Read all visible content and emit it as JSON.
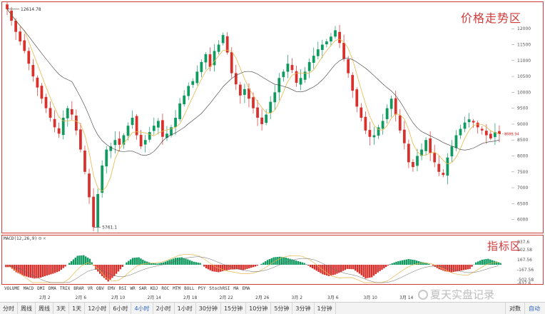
{
  "price_panel": {
    "label": "价格走势区",
    "high_marker": "12614.78",
    "low_marker": "5761.1",
    "last_price": "8689.94",
    "y_labels": [
      "12000",
      "11500",
      "11000",
      "10500",
      "10000",
      "9500",
      "9000",
      "8500",
      "8000",
      "7500",
      "7000",
      "6500",
      "6000"
    ],
    "colors": {
      "up": "#0f9a60",
      "down": "#d9302c",
      "ma_fast": "#e8b84a",
      "ma_slow": "#3a3a3a"
    }
  },
  "indicator_panel": {
    "label": "指标区",
    "title": "MACD(12,26,9)",
    "y_labels": [
      "837.6",
      "502.58",
      "167.56",
      "-167.56",
      "-502.58",
      "-837.6"
    ],
    "colors": {
      "pos": "#0f9a60",
      "neg": "#d9302c",
      "dif": "#e8b84a",
      "dea": "#666666"
    }
  },
  "indicator_names": [
    "VOLUME",
    "MACD",
    "DMI",
    "DMA",
    "TRIX",
    "BRAR",
    "VR",
    "OBV",
    "EMV",
    "RSI",
    "WR",
    "SAR",
    "KDJ",
    "ROC",
    "MTM",
    "BOLL",
    "PSY",
    "StochRSI",
    "MA",
    "EMA"
  ],
  "date_axis": [
    "2月 2",
    "2月 6",
    "2月 10",
    "2月 14",
    "2月 18",
    "2月 22",
    "2月 26",
    "3月 2",
    "3月 6",
    "3月 10",
    "3月 14"
  ],
  "periods": [
    "分时",
    "周线",
    "周线",
    "3天",
    "1天",
    "12小时",
    "6小时",
    "4小时",
    "2小时",
    "1小时",
    "30分钟",
    "15分钟",
    "10分钟",
    "5分钟",
    "3分钟",
    "1分钟"
  ],
  "active_period": "4小时",
  "bottom_right": [
    "对数",
    "自动"
  ],
  "watermark": "夏天实盘记录",
  "chart_data": {
    "type": "candlestick",
    "price_range": [
      5700,
      12700
    ],
    "close_series": [
      12614,
      12250,
      11900,
      11600,
      11300,
      10900,
      10500,
      10150,
      9800,
      9500,
      9200,
      8900,
      8700,
      9200,
      9500,
      9300,
      8800,
      8200,
      7500,
      6700,
      5761,
      6800,
      7700,
      8200,
      8300,
      8500,
      8350,
      8650,
      8950,
      9200,
      8650,
      8300,
      8500,
      8750,
      8950,
      9100,
      8600,
      8700,
      8900,
      9200,
      9650,
      9900,
      10200,
      10350,
      10650,
      10950,
      11200,
      10800,
      11300,
      11500,
      11800,
      11250,
      10600,
      10250,
      9900,
      10100,
      9800,
      9500,
      9200,
      9000,
      9300,
      9700,
      10000,
      10450,
      10650,
      10900,
      10700,
      10300,
      10450,
      10650,
      10950,
      11150,
      11350,
      11500,
      11600,
      11750,
      11950,
      11550,
      11050,
      10600,
      10050,
      9550,
      9200,
      8800,
      8600,
      8650,
      8900,
      9100,
      9500,
      9800,
      9300,
      8800,
      8400,
      7800,
      7650,
      8000,
      8200,
      8500,
      8100,
      7800,
      7500,
      7400,
      7950,
      8300,
      8650,
      8850,
      9050,
      9150,
      9050,
      8900,
      8800,
      8650,
      8550,
      8750,
      8690
    ],
    "macd_hist": [
      -80,
      -250,
      -350,
      -420,
      -460,
      -430,
      -360,
      -300,
      -220,
      -60,
      120,
      300,
      320,
      200,
      -150,
      -380,
      -560,
      -380,
      -150,
      80,
      230,
      250,
      130,
      60,
      40,
      80,
      160,
      230,
      250,
      180,
      100,
      60,
      -120,
      -220,
      -250,
      -200,
      -160,
      -150,
      -180,
      -120,
      -60,
      30,
      160,
      250,
      270,
      240,
      180,
      120,
      60,
      -80,
      -200,
      -320,
      -380,
      -330,
      -240,
      -140,
      -150,
      -300,
      -460,
      -420,
      -260,
      -120,
      20,
      100,
      150,
      190,
      160,
      100,
      60,
      -30,
      -150,
      -220,
      -250,
      -220,
      -180,
      -140,
      80,
      170,
      200,
      130,
      60
    ]
  }
}
